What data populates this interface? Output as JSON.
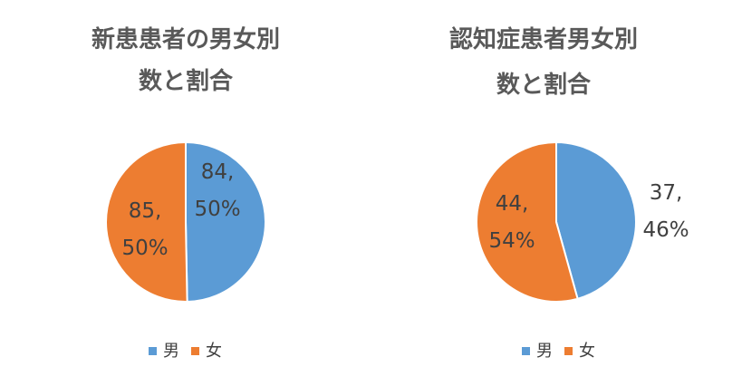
{
  "chart_data": [
    {
      "type": "pie",
      "title_lines": [
        "新患患者の男女別",
        "数と割合"
      ],
      "categories": [
        "男",
        "女"
      ],
      "values": [
        84,
        85
      ],
      "percents": [
        "50%",
        "50%"
      ],
      "colors": [
        "#5B9BD5",
        "#ED7D31"
      ],
      "legend_position": "bottom"
    },
    {
      "type": "pie",
      "title_lines": [
        "認知症患者男女別",
        "数と割合"
      ],
      "categories": [
        "男",
        "女"
      ],
      "values": [
        37,
        44
      ],
      "percents": [
        "46%",
        "54%"
      ],
      "colors": [
        "#5B9BD5",
        "#ED7D31"
      ],
      "legend_position": "bottom"
    }
  ]
}
